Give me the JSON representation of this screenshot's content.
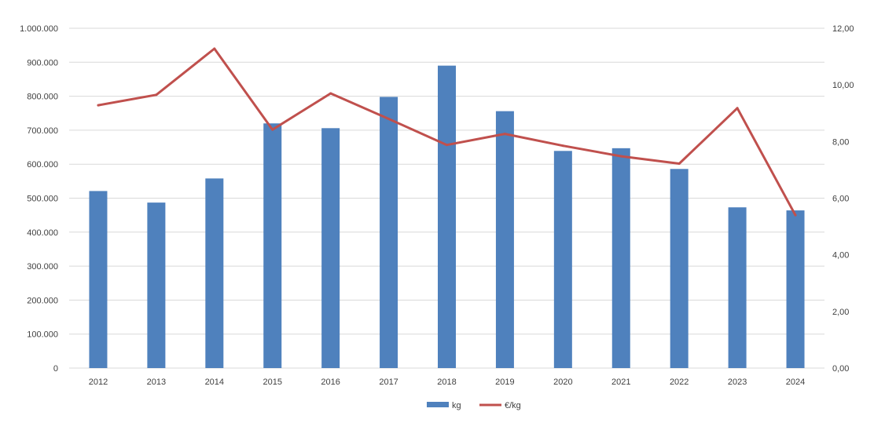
{
  "chart_data": {
    "type": "bar",
    "title": "",
    "categories": [
      "2012",
      "2013",
      "2014",
      "2015",
      "2016",
      "2017",
      "2018",
      "2019",
      "2020",
      "2021",
      "2022",
      "2023",
      "2024"
    ],
    "series": [
      {
        "name": "kg",
        "type": "bar",
        "axis": "left",
        "color": "#4f81bd",
        "values": [
          521000,
          487000,
          558000,
          720000,
          706000,
          798000,
          890000,
          756000,
          639000,
          647000,
          586000,
          473000,
          464000
        ]
      },
      {
        "name": "€/kg",
        "type": "line",
        "axis": "right",
        "color": "#c0504d",
        "values": [
          9.28,
          9.65,
          11.28,
          8.42,
          9.7,
          8.8,
          7.88,
          8.27,
          7.85,
          7.48,
          7.22,
          9.18,
          5.4
        ]
      }
    ],
    "y_left": {
      "min": 0,
      "max": 1000000,
      "tick_labels": [
        "0",
        "100.000",
        "200.000",
        "300.000",
        "400.000",
        "500.000",
        "600.000",
        "700.000",
        "800.000",
        "900.000",
        "1.000.000"
      ]
    },
    "y_right": {
      "min": 0,
      "max": 12,
      "tick_labels": [
        "0,00",
        "2,00",
        "4,00",
        "6,00",
        "8,00",
        "10,00",
        "12,00"
      ]
    },
    "grid": true,
    "legend_position": "bottom-center"
  }
}
